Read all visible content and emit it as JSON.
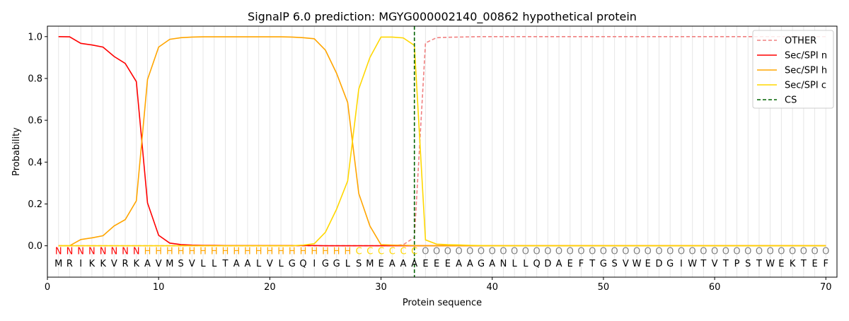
{
  "chart_data": {
    "type": "line",
    "title": "SignalP 6.0 prediction: MGYG000002140_00862 hypothetical protein",
    "xlabel": "Protein sequence",
    "ylabel": "Probability",
    "xlim": [
      0,
      71
    ],
    "ylim": [
      -0.15,
      1.05
    ],
    "x_ticks": [
      0,
      10,
      20,
      30,
      40,
      50,
      60,
      70
    ],
    "y_ticks": [
      0.0,
      0.2,
      0.4,
      0.6,
      0.8,
      1.0
    ],
    "grid": "vertical lines at each residue",
    "legend_position": "top-right",
    "sequence": [
      "M",
      "R",
      "I",
      "K",
      "K",
      "V",
      "R",
      "K",
      "A",
      "V",
      "M",
      "S",
      "V",
      "L",
      "L",
      "T",
      "A",
      "A",
      "L",
      "V",
      "L",
      "G",
      "Q",
      "I",
      "G",
      "G",
      "L",
      "S",
      "M",
      "E",
      "A",
      "A",
      "A",
      "E",
      "E",
      "E",
      "A",
      "A",
      "G",
      "A",
      "N",
      "L",
      "L",
      "Q",
      "D",
      "A",
      "E",
      "F",
      "T",
      "G",
      "S",
      "V",
      "W",
      "E",
      "D",
      "G",
      "I",
      "W",
      "T",
      "V",
      "T",
      "P",
      "S",
      "T",
      "W",
      "E",
      "K",
      "T",
      "E",
      "F"
    ],
    "region_labels": [
      "N",
      "N",
      "N",
      "N",
      "N",
      "N",
      "N",
      "N",
      "H",
      "H",
      "H",
      "H",
      "H",
      "H",
      "H",
      "H",
      "H",
      "H",
      "H",
      "H",
      "H",
      "H",
      "H",
      "H",
      "H",
      "H",
      "H",
      "C",
      "C",
      "C",
      "C",
      "C",
      "C",
      "O",
      "O",
      "O",
      "O",
      "O",
      "O",
      "O",
      "O",
      "O",
      "O",
      "O",
      "O",
      "O",
      "O",
      "O",
      "O",
      "O",
      "O",
      "O",
      "O",
      "O",
      "O",
      "O",
      "O",
      "O",
      "O",
      "O",
      "O",
      "O",
      "O",
      "O",
      "O",
      "O",
      "O",
      "O",
      "O",
      "O"
    ],
    "region_colors": {
      "N": "#ff0000",
      "H": "#ffa500",
      "C": "#ffd700",
      "O": "#808080"
    },
    "cleavage_site": 33,
    "series": [
      {
        "name": "OTHER",
        "color": "#f08080",
        "style": "dashed",
        "values": [
          0,
          0,
          0,
          0,
          0,
          0,
          0,
          0,
          0,
          0,
          0,
          0,
          0,
          0,
          0,
          0,
          0,
          0,
          0,
          0,
          0,
          0,
          0,
          0,
          0,
          0,
          0,
          0,
          0,
          0,
          0,
          0.005,
          0.04,
          0.97,
          0.995,
          0.997,
          0.998,
          0.999,
          1,
          1,
          1,
          1,
          1,
          1,
          1,
          1,
          1,
          1,
          1,
          1,
          1,
          1,
          1,
          1,
          1,
          1,
          1,
          1,
          1,
          1,
          1,
          1,
          1,
          1,
          1,
          1,
          1,
          1,
          1,
          1
        ]
      },
      {
        "name": "Sec/SPI n",
        "color": "#ff0000",
        "style": "solid",
        "values": [
          1.0,
          0.999,
          0.968,
          0.96,
          0.95,
          0.905,
          0.872,
          0.785,
          0.205,
          0.05,
          0.013,
          0.006,
          0.003,
          0.002,
          0.002,
          0.001,
          0.001,
          0.001,
          0.001,
          0.001,
          0.001,
          0.001,
          0.001,
          0.001,
          0,
          0,
          0,
          0,
          0,
          0,
          0,
          0,
          0,
          0,
          0,
          0,
          0,
          0,
          0,
          0,
          0,
          0,
          0,
          0,
          0,
          0,
          0,
          0,
          0,
          0,
          0,
          0,
          0,
          0,
          0,
          0,
          0,
          0,
          0,
          0,
          0,
          0,
          0,
          0,
          0,
          0,
          0,
          0,
          0,
          0
        ]
      },
      {
        "name": "Sec/SPI h",
        "color": "#ffa500",
        "style": "solid",
        "values": [
          0,
          0,
          0.03,
          0.038,
          0.048,
          0.095,
          0.125,
          0.215,
          0.795,
          0.95,
          0.987,
          0.995,
          0.998,
          0.999,
          0.999,
          0.999,
          0.999,
          0.999,
          0.999,
          0.999,
          0.999,
          0.998,
          0.995,
          0.99,
          0.935,
          0.825,
          0.685,
          0.25,
          0.095,
          0.005,
          0.003,
          0.002,
          0.001,
          0,
          0,
          0,
          0,
          0,
          0,
          0,
          0,
          0,
          0,
          0,
          0,
          0,
          0,
          0,
          0,
          0,
          0,
          0,
          0,
          0,
          0,
          0,
          0,
          0,
          0,
          0,
          0,
          0,
          0,
          0,
          0,
          0,
          0,
          0,
          0,
          0
        ]
      },
      {
        "name": "Sec/SPI c",
        "color": "#ffd700",
        "style": "solid",
        "values": [
          0,
          0,
          0,
          0,
          0,
          0,
          0,
          0,
          0,
          0,
          0,
          0,
          0,
          0,
          0,
          0,
          0,
          0,
          0,
          0,
          0,
          0,
          0.003,
          0.01,
          0.065,
          0.175,
          0.31,
          0.75,
          0.9,
          0.998,
          0.998,
          0.994,
          0.958,
          0.028,
          0.008,
          0.005,
          0.004,
          0.002,
          0.001,
          0,
          0,
          0,
          0,
          0,
          0,
          0,
          0,
          0,
          0,
          0,
          0,
          0,
          0,
          0,
          0,
          0,
          0,
          0,
          0,
          0,
          0,
          0,
          0,
          0,
          0,
          0,
          0,
          0,
          0,
          0
        ]
      },
      {
        "name": "CS",
        "color": "#006400",
        "style": "dashed",
        "type": "vline",
        "x": 33
      }
    ]
  }
}
